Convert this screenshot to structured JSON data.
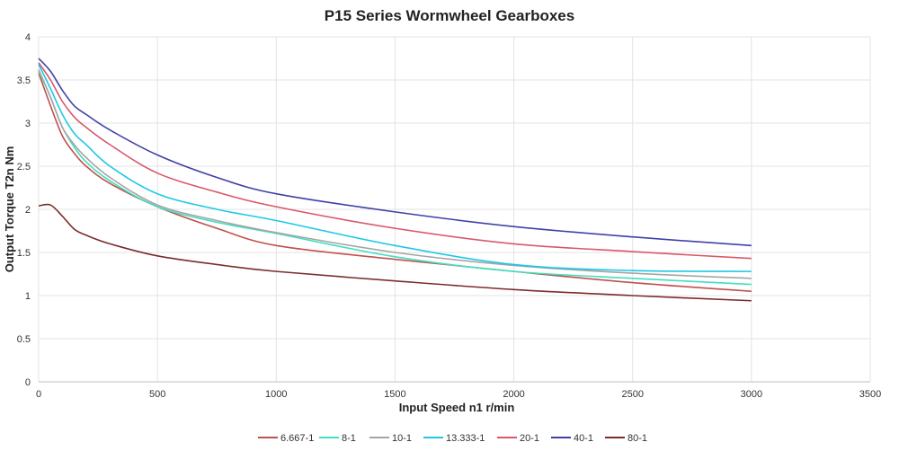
{
  "chart_data": {
    "type": "line",
    "title": "P15 Series Wormwheel Gearboxes",
    "xlabel": "Input Speed n1 r/min",
    "ylabel": "Output Torque T2n Nm",
    "xlim": [
      0,
      3500
    ],
    "ylim": [
      0,
      4
    ],
    "xticks": [
      0,
      500,
      1000,
      1500,
      2000,
      2500,
      3000,
      3500
    ],
    "yticks": [
      0,
      0.5,
      1,
      1.5,
      2,
      2.5,
      3,
      3.5,
      4
    ],
    "grid": true,
    "legend": "bottom",
    "x": [
      0,
      50,
      100,
      150,
      200,
      300,
      500,
      750,
      1000,
      1500,
      2000,
      2500,
      3000
    ],
    "series": [
      {
        "name": "6.667-1",
        "color": "#c0504d",
        "values": [
          3.58,
          3.2,
          2.85,
          2.65,
          2.5,
          2.3,
          2.03,
          1.78,
          1.58,
          1.42,
          1.28,
          1.15,
          1.05
        ]
      },
      {
        "name": "8-1",
        "color": "#40e0c0",
        "values": [
          3.6,
          3.3,
          2.95,
          2.72,
          2.55,
          2.33,
          2.03,
          1.85,
          1.72,
          1.45,
          1.28,
          1.2,
          1.13
        ]
      },
      {
        "name": "10-1",
        "color": "#a5a5a5",
        "values": [
          3.62,
          3.3,
          2.95,
          2.75,
          2.6,
          2.37,
          2.05,
          1.87,
          1.73,
          1.5,
          1.35,
          1.26,
          1.2
        ]
      },
      {
        "name": "13.333-1",
        "color": "#1ec8e6",
        "values": [
          3.68,
          3.4,
          3.1,
          2.88,
          2.75,
          2.5,
          2.18,
          2.0,
          1.87,
          1.58,
          1.36,
          1.29,
          1.28
        ]
      },
      {
        "name": "20-1",
        "color": "#d9576b",
        "values": [
          3.7,
          3.5,
          3.25,
          3.07,
          2.95,
          2.75,
          2.42,
          2.2,
          2.03,
          1.78,
          1.6,
          1.51,
          1.43
        ]
      },
      {
        "name": "40-1",
        "color": "#4040a8",
        "values": [
          3.75,
          3.6,
          3.38,
          3.2,
          3.1,
          2.92,
          2.63,
          2.37,
          2.18,
          1.97,
          1.8,
          1.68,
          1.58
        ]
      },
      {
        "name": "80-1",
        "color": "#7b2c2c",
        "values": [
          2.04,
          2.05,
          1.92,
          1.77,
          1.7,
          1.6,
          1.46,
          1.36,
          1.28,
          1.17,
          1.07,
          1.0,
          0.94
        ]
      }
    ]
  }
}
